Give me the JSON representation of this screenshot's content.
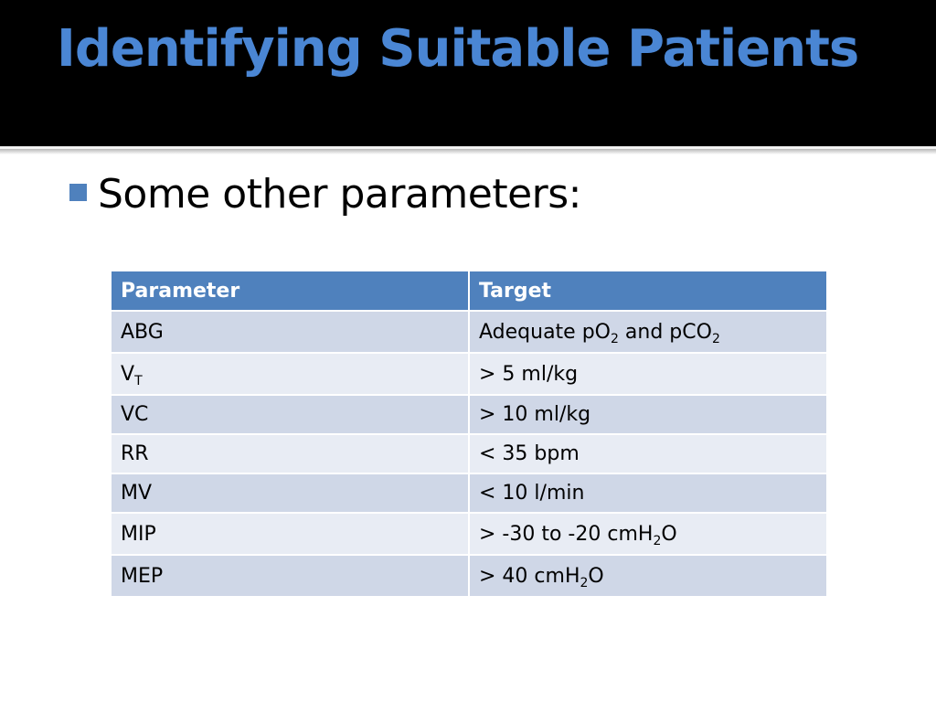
{
  "slide": {
    "title": "Identifying Suitable Patients",
    "bullet": "Some other parameters:"
  },
  "colors": {
    "title": "#4a86d4",
    "header_band": "#000000",
    "bullet_marker": "#4f81bd",
    "table_header": "#4f81bd",
    "row_dark": "#cfd7e7",
    "row_light": "#e8ecf4"
  },
  "table": {
    "headers": [
      "Parameter",
      "Target"
    ],
    "rows": [
      {
        "parameter": {
          "main": "ABG",
          "sub": ""
        },
        "target": [
          {
            "t": "Adequate pO"
          },
          {
            "sub": "2"
          },
          {
            "t": " and pCO"
          },
          {
            "sub": "2"
          }
        ]
      },
      {
        "parameter": {
          "main": "V",
          "sub": "T"
        },
        "target": [
          {
            "t": "> 5 ml/kg"
          }
        ]
      },
      {
        "parameter": {
          "main": "VC",
          "sub": ""
        },
        "target": [
          {
            "t": "> 10 ml/kg"
          }
        ]
      },
      {
        "parameter": {
          "main": "RR",
          "sub": ""
        },
        "target": [
          {
            "t": "< 35 bpm"
          }
        ]
      },
      {
        "parameter": {
          "main": "MV",
          "sub": ""
        },
        "target": [
          {
            "t": "< 10 l/min"
          }
        ]
      },
      {
        "parameter": {
          "main": "MIP",
          "sub": ""
        },
        "target": [
          {
            "t": "> -30 to -20 cmH"
          },
          {
            "sub": "2"
          },
          {
            "t": "O"
          }
        ]
      },
      {
        "parameter": {
          "main": "MEP",
          "sub": ""
        },
        "target": [
          {
            "t": "> 40 cmH"
          },
          {
            "sub": "2"
          },
          {
            "t": "O"
          }
        ]
      }
    ]
  }
}
